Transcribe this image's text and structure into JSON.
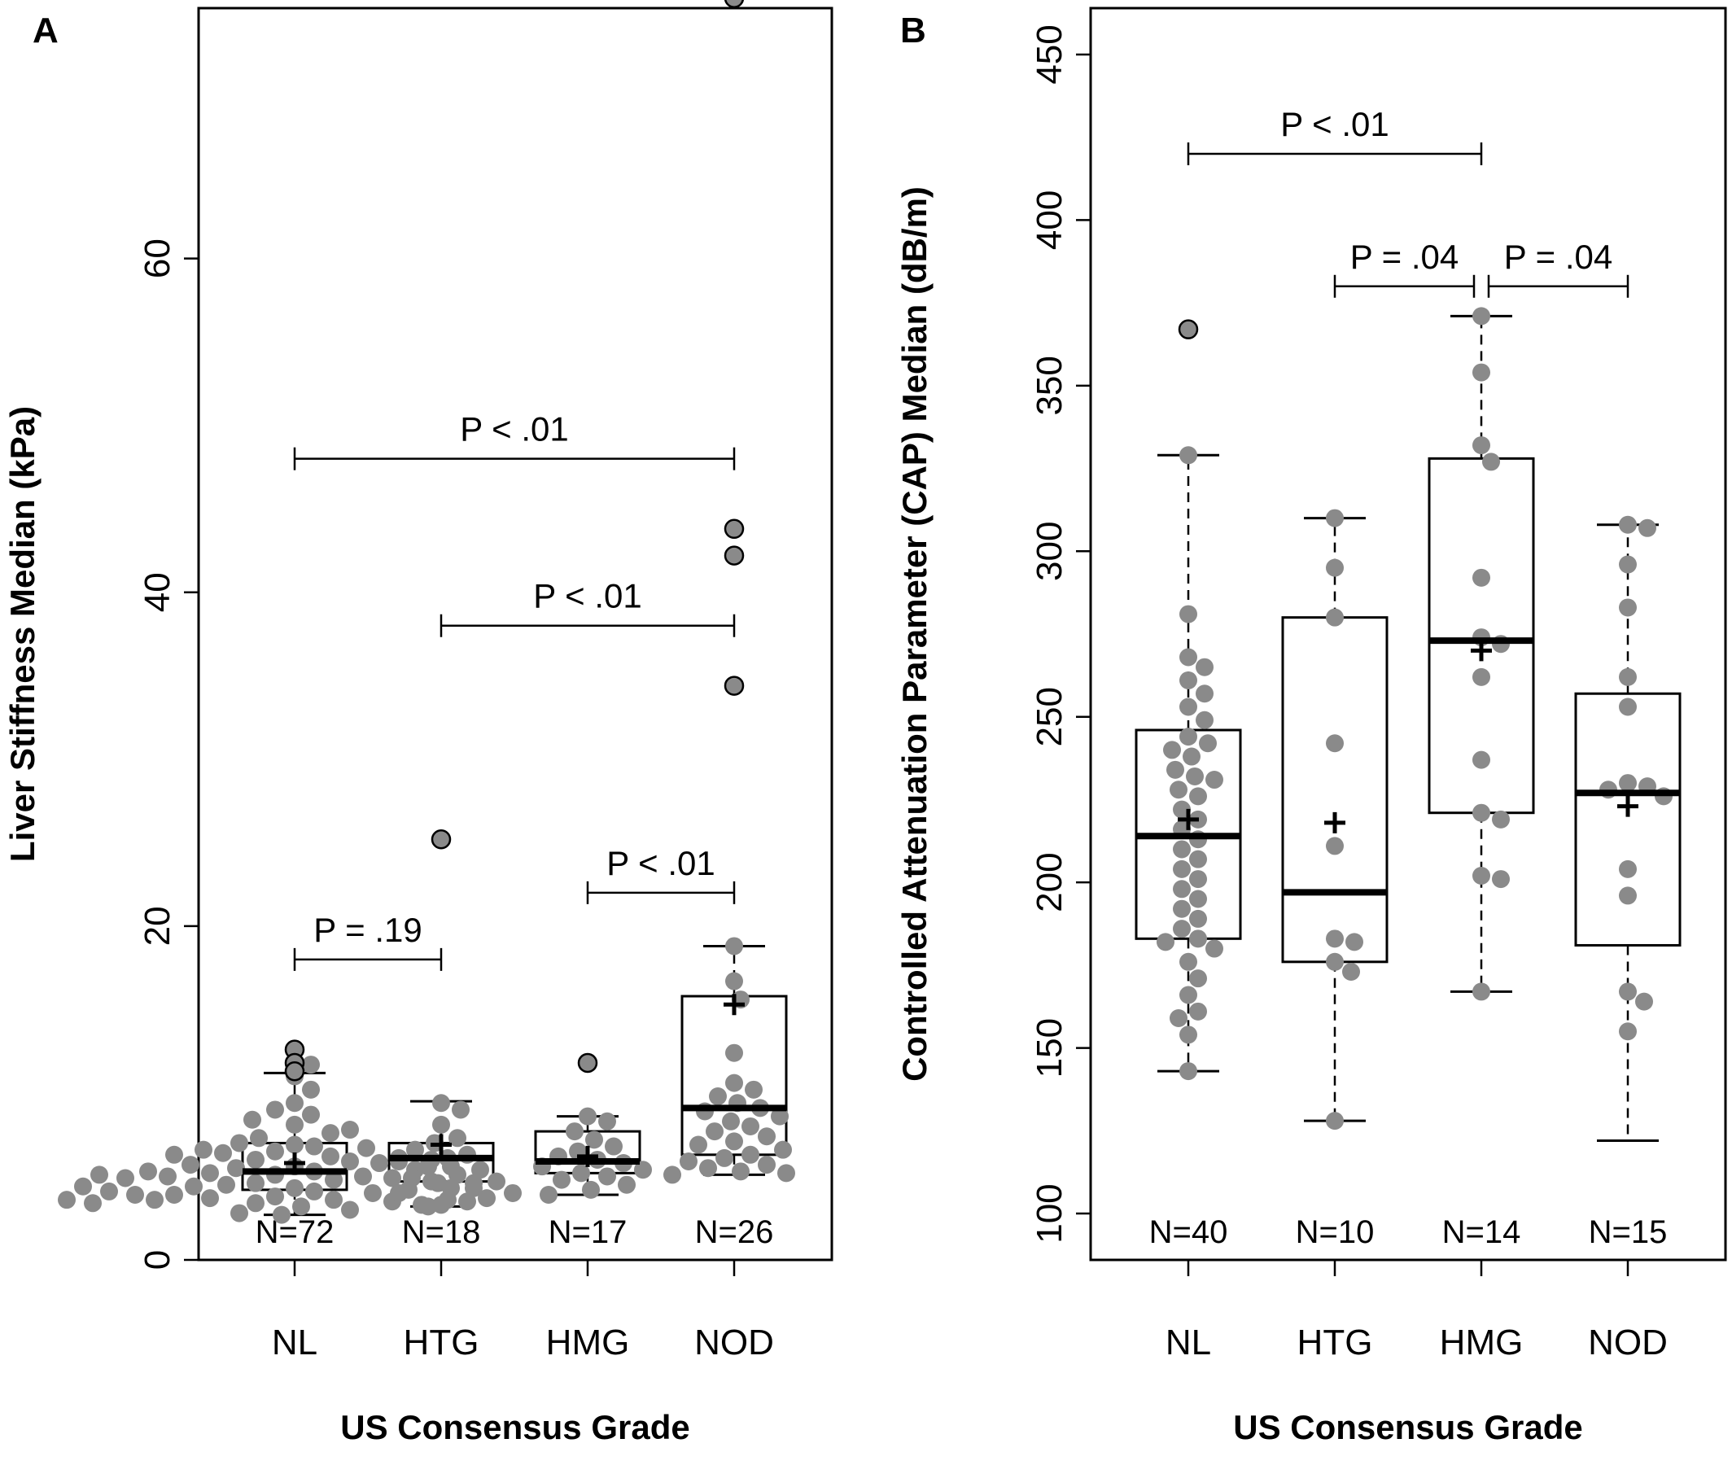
{
  "chart_data": [
    {
      "type": "boxplot",
      "panel_label": "A",
      "xlabel": "US Consensus Grade",
      "ylabel": "Liver Stiffness Median (kPa)",
      "ylim": [
        0,
        75
      ],
      "yticks": [
        0,
        20,
        40,
        60
      ],
      "categories": [
        "NL",
        "HTG",
        "HMG",
        "NOD"
      ],
      "n_labels": [
        "N=72",
        "N=18",
        "N=17",
        "N=26"
      ],
      "boxes": [
        {
          "q1": 4.2,
          "median": 5.3,
          "q3": 7.0,
          "whisker_low": 2.7,
          "whisker_high": 11.2,
          "mean": 5.8,
          "outliers": [
            12.6,
            11.8,
            11.3
          ]
        },
        {
          "q1": 4.7,
          "median": 6.1,
          "q3": 7.0,
          "whisker_low": 3.2,
          "whisker_high": 9.5,
          "mean": 6.9,
          "outliers": [
            25.2
          ]
        },
        {
          "q1": 5.2,
          "median": 5.9,
          "q3": 7.7,
          "whisker_low": 3.9,
          "whisker_high": 8.6,
          "mean": 6.2,
          "outliers": [
            11.8
          ]
        },
        {
          "q1": 6.3,
          "median": 9.1,
          "q3": 15.8,
          "whisker_low": 5.1,
          "whisker_high": 18.8,
          "mean": 15.3,
          "outliers": [
            34.4,
            42.2,
            43.8,
            75.6
          ]
        }
      ],
      "points": [
        [
          6.9,
          6.8,
          6.5,
          6.2,
          6.0,
          5.9,
          5.6,
          5.3,
          5.1,
          4.8,
          4.6,
          4.3,
          4.1,
          3.8,
          3.6,
          3.4,
          3.2,
          3.0,
          2.8,
          2.7,
          7.3,
          7.6,
          8.1,
          8.7,
          9.4,
          10.2,
          11.0,
          11.7,
          5.5,
          5.0,
          4.5,
          4.0,
          3.7,
          6.4,
          5.8,
          5.2,
          4.9,
          4.4,
          4.2,
          3.9,
          3.5,
          3.3,
          6.6,
          6.1,
          5.7,
          5.4,
          4.7,
          3.6,
          7.0,
          6.3,
          5.0,
          4.3,
          3.9,
          3.5,
          9.0,
          8.4,
          7.8,
          6.7,
          5.3,
          4.9,
          4.6,
          4.1,
          3.7,
          3.4,
          6.0,
          5.6,
          5.1,
          4.7,
          4.4,
          4.0,
          3.6,
          3.3
        ],
        [
          9.4,
          9.0,
          8.1,
          7.3,
          7.0,
          6.6,
          6.3,
          6.1,
          5.9,
          5.6,
          5.4,
          5.1,
          4.9,
          4.6,
          4.3,
          4.0,
          3.6,
          3.2
        ],
        [
          8.6,
          8.3,
          7.7,
          7.2,
          6.8,
          6.5,
          6.2,
          6.0,
          5.8,
          5.6,
          5.4,
          5.2,
          5.0,
          4.8,
          4.5,
          4.2,
          3.9
        ],
        [
          18.8,
          16.7,
          15.6,
          12.4,
          10.6,
          10.2,
          9.8,
          9.4,
          9.1,
          8.9,
          8.6,
          8.3,
          8.0,
          7.7,
          7.4,
          7.1,
          6.9,
          6.6,
          6.3,
          6.1,
          5.9,
          5.7,
          5.5,
          5.3,
          5.2,
          5.1
        ]
      ],
      "comparisons": [
        {
          "from": 0,
          "to": 3,
          "y": 48,
          "label": "P < .01"
        },
        {
          "from": 1,
          "to": 3,
          "y": 38,
          "label": "P < .01"
        },
        {
          "from": 2,
          "to": 3,
          "y": 22,
          "label": "P < .01"
        },
        {
          "from": 0,
          "to": 1,
          "y": 18,
          "label": "P = .19"
        }
      ]
    },
    {
      "type": "boxplot",
      "panel_label": "B",
      "xlabel": "US Consensus Grade",
      "ylabel": "Controlled Attenuation Parameter (CAP) Median (dB/m)",
      "ylim": [
        86,
        464
      ],
      "yticks": [
        100,
        150,
        200,
        250,
        300,
        350,
        400,
        450
      ],
      "categories": [
        "NL",
        "HTG",
        "HMG",
        "NOD"
      ],
      "n_labels": [
        "N=40",
        "N=10",
        "N=14",
        "N=15"
      ],
      "boxes": [
        {
          "q1": 183,
          "median": 214,
          "q3": 246,
          "whisker_low": 143,
          "whisker_high": 329,
          "mean": 219,
          "outliers": [
            367
          ]
        },
        {
          "q1": 176,
          "median": 197,
          "q3": 280,
          "whisker_low": 128,
          "whisker_high": 310,
          "mean": 218,
          "outliers": []
        },
        {
          "q1": 221,
          "median": 273,
          "q3": 328,
          "whisker_low": 167,
          "whisker_high": 371,
          "mean": 270,
          "outliers": []
        },
        {
          "q1": 181,
          "median": 227,
          "q3": 257,
          "whisker_low": 122,
          "whisker_high": 308,
          "mean": 223,
          "outliers": []
        }
      ],
      "points": [
        [
          329,
          281,
          268,
          265,
          261,
          257,
          253,
          249,
          244,
          242,
          240,
          238,
          234,
          232,
          231,
          228,
          226,
          222,
          219,
          216,
          213,
          210,
          207,
          204,
          201,
          198,
          195,
          192,
          189,
          186,
          183,
          182,
          180,
          176,
          171,
          166,
          161,
          159,
          154,
          143
        ],
        [
          310,
          295,
          280,
          242,
          211,
          183,
          182,
          176,
          173,
          128
        ],
        [
          371,
          354,
          332,
          327,
          292,
          274,
          272,
          262,
          237,
          221,
          219,
          202,
          201,
          167
        ],
        [
          308,
          307,
          296,
          283,
          262,
          253,
          230,
          229,
          228,
          226,
          204,
          196,
          167,
          164,
          155
        ]
      ],
      "comparisons": [
        {
          "from": 0,
          "to": 2,
          "y": 420,
          "label": "P < .01"
        },
        {
          "from": 1,
          "to": 2,
          "y": 380,
          "label": "P = .04"
        },
        {
          "from": 2,
          "to": 3,
          "y": 380,
          "label": "P = .04"
        }
      ]
    }
  ]
}
